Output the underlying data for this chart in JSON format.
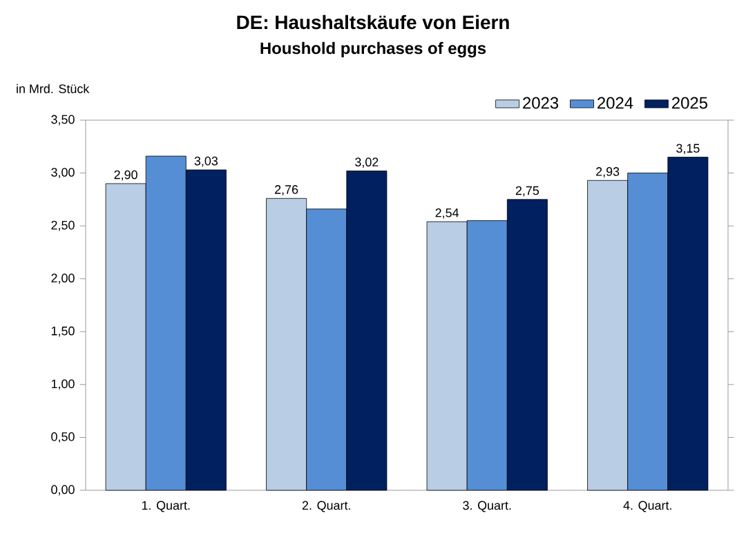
{
  "chart_data": {
    "type": "bar",
    "title": "DE: Haushaltskäufe von Eiern",
    "subtitle": "Houshold purchases of eggs",
    "ylabel": "in Mrd. Stück",
    "categories": [
      "1. Quart.",
      "2. Quart.",
      "3. Quart.",
      "4. Quart."
    ],
    "series": [
      {
        "name": "2023",
        "color": "#b9cde5",
        "values": [
          2.9,
          2.76,
          2.54,
          2.93
        ],
        "value_labels": [
          "2,90",
          "2,76",
          "2,54",
          "2,93"
        ]
      },
      {
        "name": "2024",
        "color": "#558ed5",
        "values": [
          3.16,
          2.66,
          2.55,
          3.0
        ],
        "value_labels": [
          null,
          null,
          null,
          null
        ]
      },
      {
        "name": "2025",
        "color": "#002060",
        "values": [
          3.03,
          3.02,
          2.75,
          3.15
        ],
        "value_labels": [
          "3,03",
          "3,02",
          "2,75",
          "3,15"
        ]
      }
    ],
    "ylim": [
      0,
      3.5
    ],
    "yticks": [
      {
        "value": 0,
        "label": "0,00"
      },
      {
        "value": 0.5,
        "label": "0,50"
      },
      {
        "value": 1,
        "label": "1,00"
      },
      {
        "value": 1.5,
        "label": "1,50"
      },
      {
        "value": 2,
        "label": "2,00"
      },
      {
        "value": 2.5,
        "label": "2,50"
      },
      {
        "value": 3,
        "label": "3,00"
      },
      {
        "value": 3.5,
        "label": "3,50"
      }
    ],
    "legend": "top right",
    "grid": false
  }
}
